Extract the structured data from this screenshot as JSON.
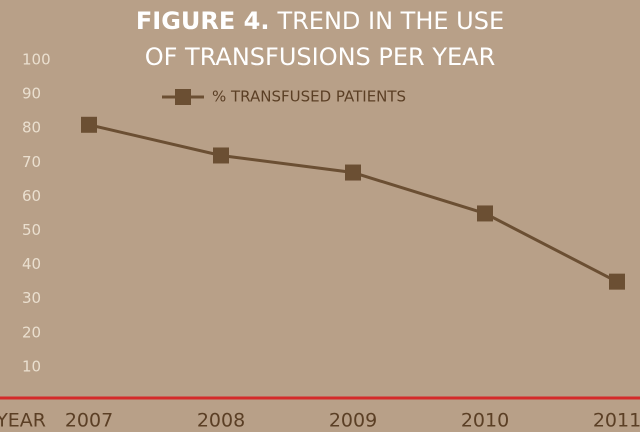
{
  "chart_data": {
    "type": "line",
    "title": [
      "FIGURE 4.",
      "TREND IN THE USE",
      "OF TRANSFUSIONS PER YEAR"
    ],
    "xlabel": "YEAR",
    "categories": [
      "2007",
      "2008",
      "2009",
      "2010",
      "2011"
    ],
    "series": [
      {
        "name": "% TRANSFUSED PATIENTS",
        "color": "#6b4f33",
        "values": [
          81,
          72,
          67,
          55,
          35
        ]
      }
    ],
    "ylim": [
      0,
      100
    ],
    "yticks": [
      10,
      20,
      30,
      40,
      50,
      60,
      70,
      80,
      90,
      100
    ],
    "baseline_color": "#d42a2a"
  }
}
